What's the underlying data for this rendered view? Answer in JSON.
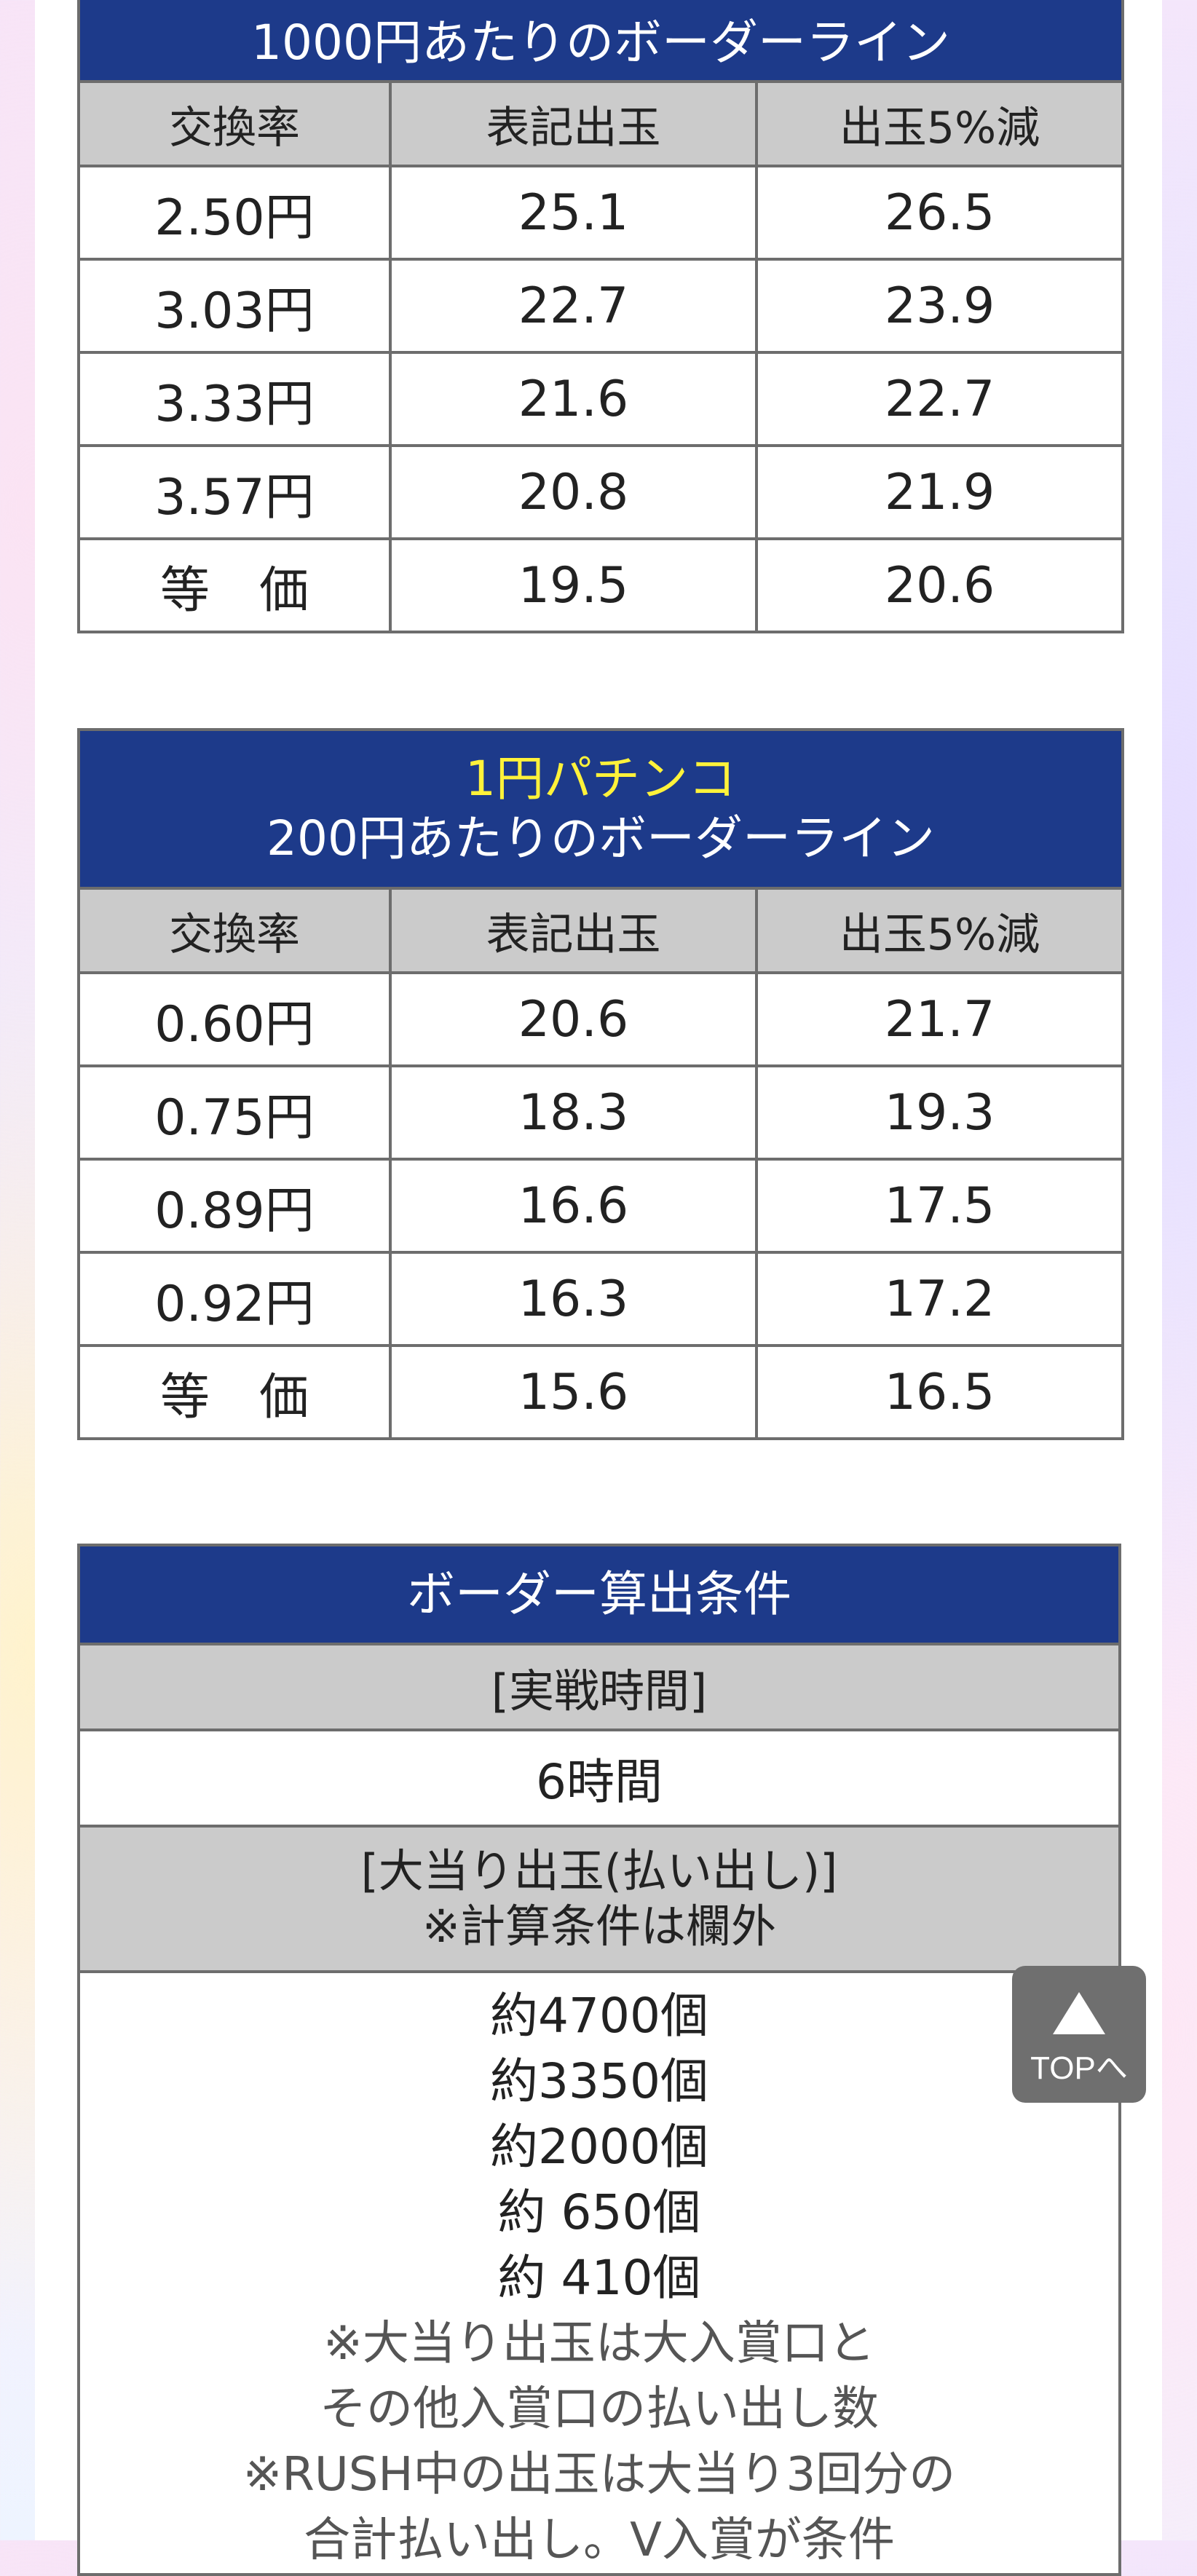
{
  "table1": {
    "title": "1000円あたりのボーダーライン",
    "headers": [
      "交換率",
      "表記出玉",
      "出玉5%減"
    ],
    "rows": [
      [
        "2.50円",
        "25.1",
        "26.5"
      ],
      [
        "3.03円",
        "22.7",
        "23.9"
      ],
      [
        "3.33円",
        "21.6",
        "22.7"
      ],
      [
        "3.57円",
        "20.8",
        "21.9"
      ],
      [
        "等　価",
        "19.5",
        "20.6"
      ]
    ]
  },
  "table2": {
    "title_line1": "1円パチンコ",
    "title_line2": "200円あたりのボーダーライン",
    "headers": [
      "交換率",
      "表記出玉",
      "出玉5%減"
    ],
    "rows": [
      [
        "0.60円",
        "20.6",
        "21.7"
      ],
      [
        "0.75円",
        "18.3",
        "19.3"
      ],
      [
        "0.89円",
        "16.6",
        "17.5"
      ],
      [
        "0.92円",
        "16.3",
        "17.2"
      ],
      [
        "等　価",
        "15.6",
        "16.5"
      ]
    ]
  },
  "conditions": {
    "title": "ボーダー算出条件",
    "play_time_label": "[実戦時間]",
    "play_time_value": "6時間",
    "payout_label_line1": "[大当り出玉(払い出し)]",
    "payout_label_line2": "※計算条件は欄外",
    "payouts": [
      "約4700個",
      "約3350個",
      "約2000個",
      "約 650個",
      "約 410個"
    ],
    "notes": [
      "※大当り出玉は大入賞口と",
      "その他入賞口の払い出し数",
      "※RUSH中の出玉は大当り3回分の",
      "合計払い出し。V入賞が条件"
    ]
  },
  "top_button": {
    "label": "TOPへ",
    "icon": "triangle-up-icon"
  },
  "colors": {
    "header_blue": "#1d3a8a",
    "header_gray": "#cbcbcb",
    "highlight_yellow": "#fff23a",
    "border": "#6d6d6d"
  }
}
